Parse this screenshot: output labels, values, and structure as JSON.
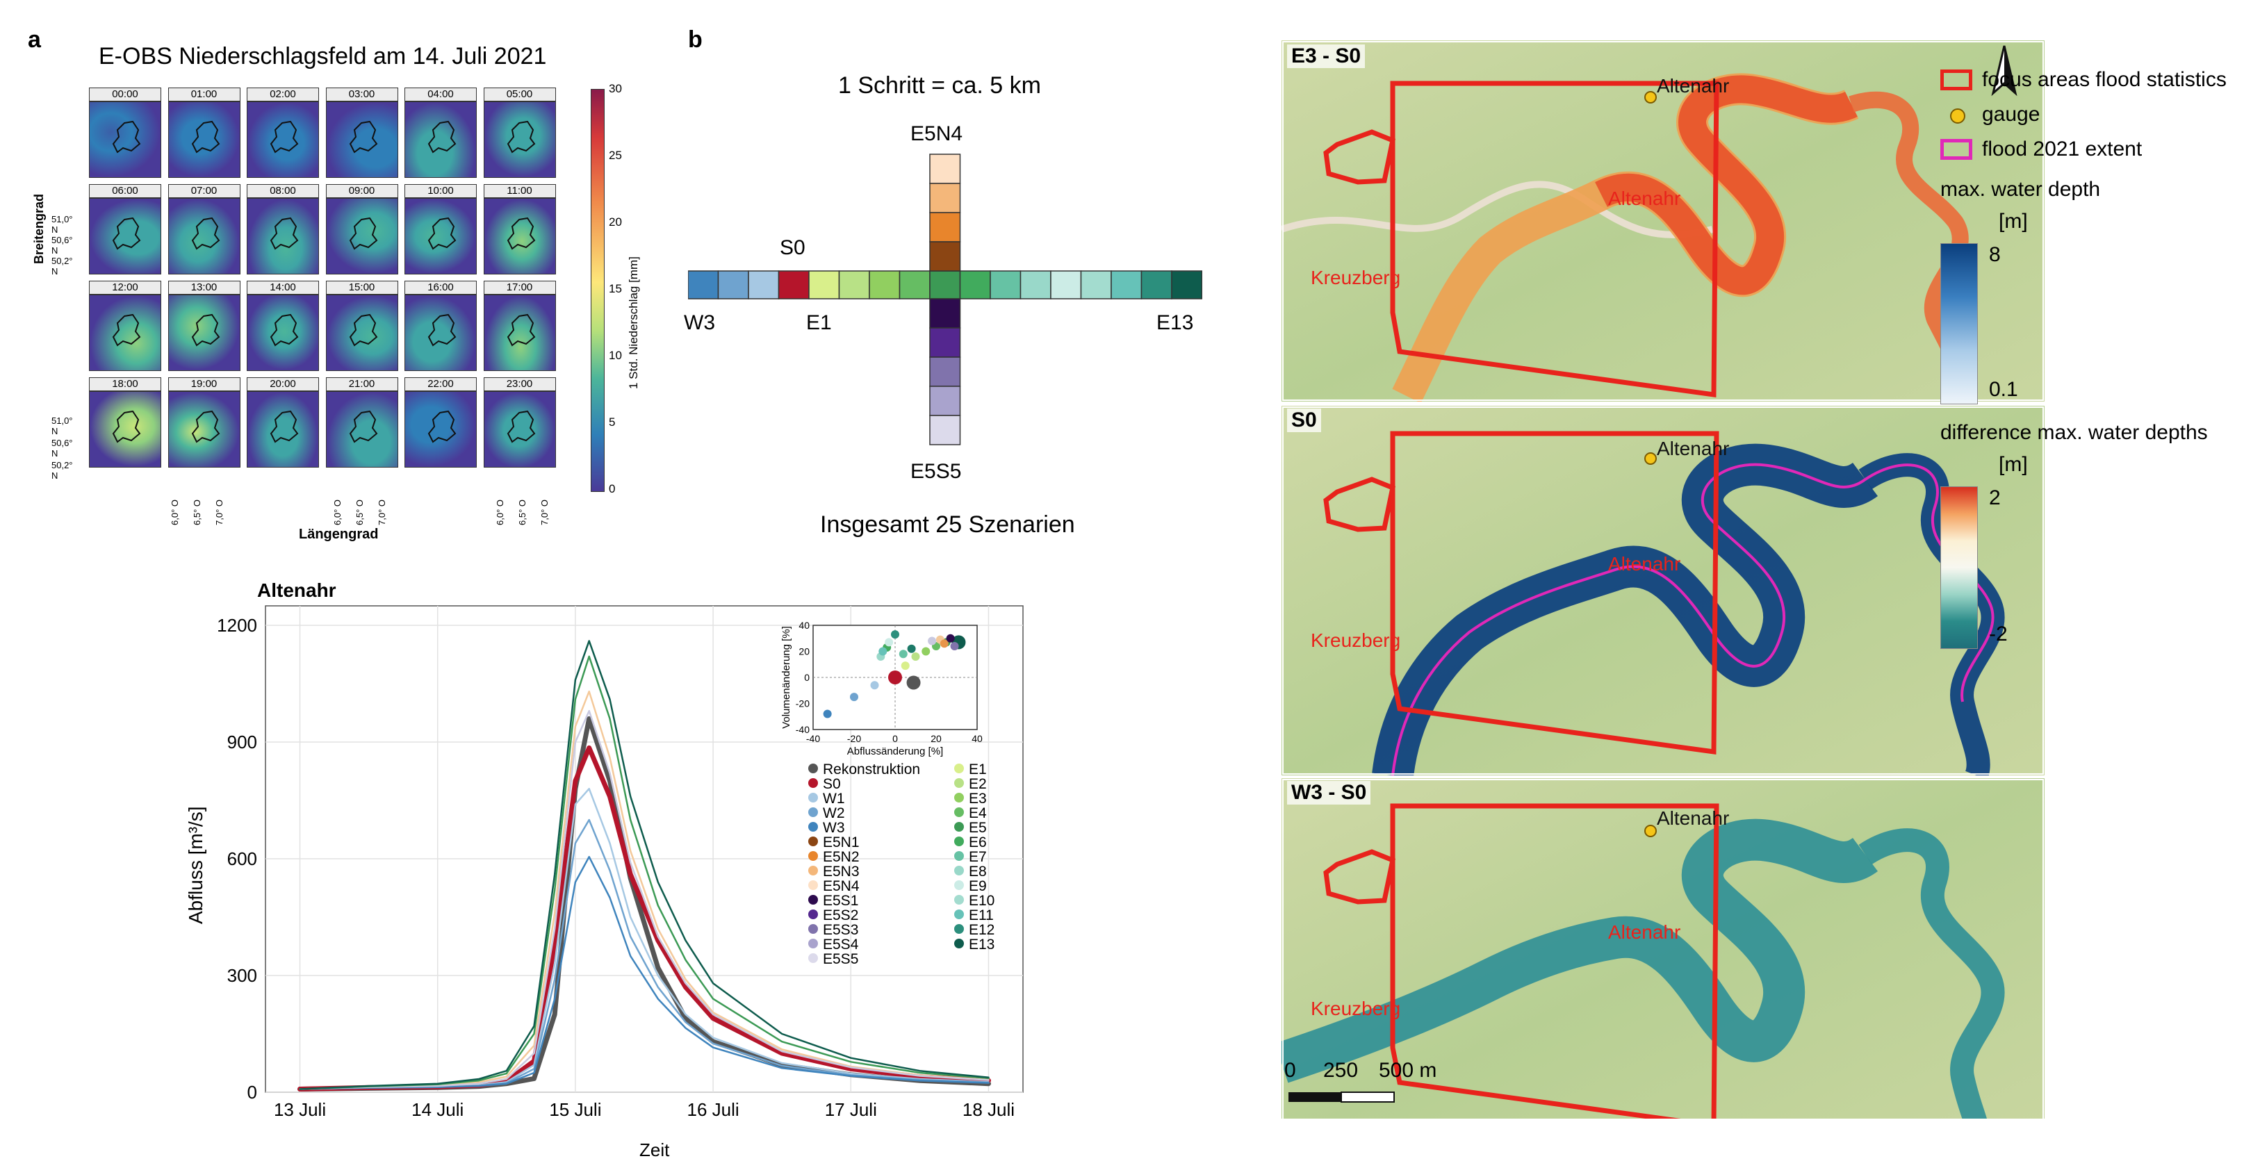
{
  "panel_a": {
    "letter": "a",
    "title": "E-OBS Niederschlagsfeld am 14. Juli 2021",
    "hours": [
      "00:00",
      "01:00",
      "02:00",
      "03:00",
      "04:00",
      "05:00",
      "06:00",
      "07:00",
      "08:00",
      "09:00",
      "10:00",
      "11:00",
      "12:00",
      "13:00",
      "14:00",
      "15:00",
      "16:00",
      "17:00",
      "18:00",
      "19:00",
      "20:00",
      "21:00",
      "22:00",
      "23:00"
    ],
    "lat_ticks": [
      "51,0° N",
      "50,6° N",
      "50,2° N"
    ],
    "lon_ticks": [
      "6,0° O",
      "6,5° O",
      "7,0° O"
    ],
    "ylabel": "Breitengrad",
    "xlabel": "Längengrad",
    "colorbar": {
      "label": "1 Std. Niederschlag [mm]",
      "ticks": [
        "30",
        "25",
        "20",
        "15",
        "10",
        "5",
        "0"
      ],
      "min": 0,
      "max": 30
    }
  },
  "panel_b": {
    "letter": "b",
    "step_label": "1 Schritt = ca. 5 km",
    "top_label": "E5N4",
    "bottom_label": "E5S5",
    "s0_label": "S0",
    "w3_label": "W3",
    "e1_label": "E1",
    "e13_label": "E13",
    "total_label": "Insgesamt 25 Szenarien"
  },
  "hydrograph": {
    "title": "Altenahr",
    "xtick_labels": [
      "13 Juli",
      "14 Juli",
      "15 Juli",
      "16 Juli",
      "17 Juli",
      "18 Juli"
    ],
    "xlabel": "Zeit",
    "ylabel": "Abfluss [m³/s]",
    "ytick_labels": [
      "0",
      "300",
      "600",
      "900",
      "1200"
    ],
    "legend_left": [
      "Rekonstruktion",
      "S0",
      "W1",
      "W2",
      "W3",
      "E5N1",
      "E5N2",
      "E5N3",
      "E5N4",
      "E5S1",
      "E5S2",
      "E5S3",
      "E5S4",
      "E5S5"
    ],
    "legend_right": [
      "E1",
      "E2",
      "E3",
      "E4",
      "E5",
      "E6",
      "E7",
      "E8",
      "E9",
      "E10",
      "E11",
      "E12",
      "E13"
    ],
    "inset": {
      "xlabel": "Abflussänderung [%]",
      "ylabel": "Volumenänderung [%]",
      "xticks": [
        "-40",
        "-20",
        "0",
        "20",
        "40"
      ],
      "yticks": [
        "40",
        "20",
        "0",
        "-20",
        "-40"
      ]
    }
  },
  "chart_data": {
    "type": "line",
    "title": "Altenahr",
    "xlabel": "Zeit",
    "ylabel": "Abfluss [m³/s]",
    "ylim": [
      0,
      1250
    ],
    "x_dates": [
      "13 Juli",
      "14 Juli",
      "15 Juli",
      "16 Juli",
      "17 Juli",
      "18 Juli"
    ],
    "x": [
      13.0,
      13.5,
      14.0,
      14.3,
      14.5,
      14.7,
      14.85,
      15.0,
      15.1,
      15.25,
      15.4,
      15.6,
      15.8,
      16.0,
      16.5,
      17.0,
      17.5,
      18.0
    ],
    "series": [
      {
        "name": "Rekonstruktion",
        "color": "#555555",
        "values": [
          8,
          10,
          12,
          15,
          22,
          35,
          200,
          780,
          960,
          800,
          550,
          320,
          190,
          130,
          70,
          45,
          30,
          22
        ]
      },
      {
        "name": "S0",
        "color": "#b5152b",
        "values": [
          8,
          12,
          14,
          18,
          28,
          80,
          380,
          800,
          885,
          760,
          560,
          390,
          270,
          190,
          100,
          60,
          40,
          30
        ]
      },
      {
        "name": "W1",
        "color": "#a6c8e3",
        "values": [
          8,
          12,
          14,
          18,
          26,
          70,
          330,
          740,
          780,
          640,
          450,
          300,
          200,
          140,
          75,
          48,
          34,
          26
        ]
      },
      {
        "name": "W2",
        "color": "#6fa3cf",
        "values": [
          8,
          12,
          13,
          17,
          24,
          60,
          290,
          640,
          700,
          570,
          400,
          270,
          180,
          125,
          68,
          44,
          32,
          25
        ]
      },
      {
        "name": "W3",
        "color": "#3f84bd",
        "values": [
          8,
          11,
          13,
          16,
          22,
          50,
          240,
          540,
          605,
          500,
          350,
          240,
          165,
          115,
          62,
          42,
          30,
          24
        ]
      },
      {
        "name": "E5N4",
        "color": "#f4c99a",
        "values": [
          8,
          14,
          18,
          26,
          40,
          120,
          460,
          940,
          1030,
          860,
          620,
          420,
          290,
          205,
          110,
          66,
          44,
          32
        ]
      },
      {
        "name": "E5S5",
        "color": "#c9c9e0",
        "values": [
          8,
          13,
          16,
          22,
          34,
          100,
          420,
          900,
          980,
          820,
          590,
          400,
          280,
          200,
          105,
          64,
          42,
          31
        ]
      },
      {
        "name": "E5",
        "color": "#3c9a55",
        "values": [
          8,
          15,
          20,
          30,
          48,
          150,
          520,
          1010,
          1120,
          960,
          700,
          480,
          340,
          240,
          130,
          78,
          50,
          36
        ]
      },
      {
        "name": "E13",
        "color": "#0e5c4d",
        "values": [
          8,
          16,
          22,
          34,
          55,
          170,
          560,
          1060,
          1160,
          1010,
          760,
          540,
          390,
          280,
          150,
          88,
          55,
          38
        ]
      }
    ],
    "inset_scatter": {
      "type": "scatter",
      "xlabel": "Abflussänderung [%]",
      "ylabel": "Volumenänderung [%]",
      "xlim": [
        -40,
        40
      ],
      "ylim": [
        -40,
        40
      ],
      "points": [
        {
          "name": "S0",
          "x": 0,
          "y": 0,
          "color": "#b5152b",
          "big": true
        },
        {
          "name": "Rekonstruktion",
          "x": 9,
          "y": -4,
          "color": "#555555",
          "big": true
        },
        {
          "name": "E13",
          "x": 31,
          "y": 27,
          "color": "#0e5c4d",
          "big": true
        },
        {
          "name": "W3",
          "x": -33,
          "y": -28,
          "color": "#3f84bd"
        },
        {
          "name": "W2",
          "x": -20,
          "y": -15,
          "color": "#6fa3cf"
        },
        {
          "name": "W1",
          "x": -10,
          "y": -6,
          "color": "#a6c8e3"
        },
        {
          "name": "E1",
          "x": 5,
          "y": 9,
          "color": "#d9ef8b"
        },
        {
          "name": "E2",
          "x": 10,
          "y": 16,
          "color": "#b8e186"
        },
        {
          "name": "E3",
          "x": 15,
          "y": 20,
          "color": "#91cf60"
        },
        {
          "name": "E4",
          "x": 20,
          "y": 24,
          "color": "#66bd63"
        },
        {
          "name": "E5",
          "x": 25,
          "y": 27,
          "color": "#3c9a55"
        },
        {
          "name": "E6",
          "x": -4,
          "y": 23,
          "color": "#41ab5d"
        },
        {
          "name": "E7",
          "x": 4,
          "y": 18,
          "color": "#66c2a4"
        },
        {
          "name": "E8",
          "x": -7,
          "y": 16,
          "color": "#99d8c9"
        },
        {
          "name": "E9",
          "x": -3,
          "y": 27,
          "color": "#ccece6"
        },
        {
          "name": "E10",
          "x": -6,
          "y": 20,
          "color": "#66c2b8"
        },
        {
          "name": "E11",
          "x": 0,
          "y": 33,
          "color": "#2c8f7d"
        },
        {
          "name": "E12",
          "x": 8,
          "y": 22,
          "color": "#1d7a68"
        },
        {
          "name": "E5N4",
          "x": 22,
          "y": 29,
          "color": "#f4c99a"
        },
        {
          "name": "E5N3",
          "x": 24,
          "y": 26,
          "color": "#e8954a"
        },
        {
          "name": "E5S1",
          "x": 27,
          "y": 30,
          "color": "#2d0b4e"
        },
        {
          "name": "E5S3",
          "x": 29,
          "y": 24,
          "color": "#8073ac"
        },
        {
          "name": "E5S5",
          "x": 18,
          "y": 28,
          "color": "#c9c9e0"
        }
      ]
    }
  },
  "maps": {
    "panel1_tag": "E3 - S0",
    "panel2_tag": "S0",
    "panel3_tag": "W3 - S0",
    "place_top": "Altenahr",
    "place_mid": "Altenahr",
    "place_left": "Kreuzberg",
    "scale_labels": [
      "0",
      "250",
      "500 m"
    ]
  },
  "map_legend": {
    "focus_areas": "focus areas flood statistics",
    "gauge": "gauge",
    "flood_extent": "flood 2021 extent",
    "depth_title": "max. water depth",
    "depth_unit": "[m]",
    "depth_max": "8",
    "depth_min": "0.1",
    "diff_title": "difference max. water depths",
    "diff_unit": "[m]",
    "diff_max": "2",
    "diff_min": "-2"
  },
  "colors": {
    "focus_red": "#e8231c",
    "flood_magenta": "#e028b8",
    "gauge_yellow": "#f5c518",
    "depth_dark": "#0b3f7e"
  }
}
